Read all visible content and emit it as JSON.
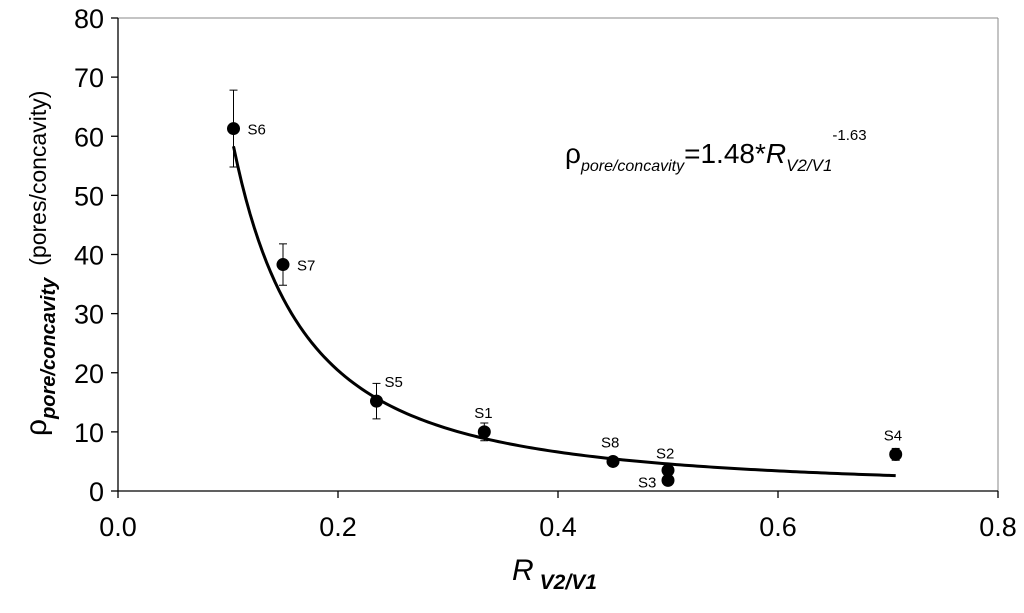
{
  "chart_data": {
    "type": "scatter",
    "title": "",
    "xlabel": {
      "main": "R",
      "sub": "V2/V1"
    },
    "ylabel": {
      "main": "ρ",
      "sub": "pore/concavity",
      "unit": "(pores/concavity)"
    },
    "xlim": [
      0.0,
      0.8
    ],
    "ylim": [
      0,
      80
    ],
    "xticks": [
      "0.0",
      "0.2",
      "0.4",
      "0.6",
      "0.8"
    ],
    "xtick_values": [
      0.0,
      0.2,
      0.4,
      0.6,
      0.8
    ],
    "yticks": [
      "0",
      "10",
      "20",
      "30",
      "40",
      "50",
      "60",
      "70",
      "80"
    ],
    "ytick_values": [
      0,
      10,
      20,
      30,
      40,
      50,
      60,
      70,
      80
    ],
    "grid": false,
    "legend": "none",
    "points": [
      {
        "label": "S6",
        "x": 0.105,
        "y": 61.3,
        "err": 6.5
      },
      {
        "label": "S7",
        "x": 0.15,
        "y": 38.3,
        "err": 3.5
      },
      {
        "label": "S5",
        "x": 0.235,
        "y": 15.2,
        "err": 3.0
      },
      {
        "label": "S1",
        "x": 0.333,
        "y": 10.0,
        "err": 1.5
      },
      {
        "label": "S8",
        "x": 0.45,
        "y": 5.0,
        "err": 0.5
      },
      {
        "label": "S2",
        "x": 0.5,
        "y": 3.5,
        "err": 0.5
      },
      {
        "label": "S3",
        "x": 0.5,
        "y": 1.8,
        "err": 0.5
      },
      {
        "label": "S4",
        "x": 0.707,
        "y": 6.2,
        "err": 1.0
      }
    ],
    "fit": {
      "type": "power",
      "coefficient": 1.48,
      "exponent": -1.63,
      "x_range": [
        0.105,
        0.707
      ]
    },
    "annotation": {
      "rho": "ρ",
      "sub": "pore/concavity",
      "eq": "=1.48*",
      "R": "R",
      "Rsub": "V2/V1",
      "exp": "-1.63"
    }
  }
}
